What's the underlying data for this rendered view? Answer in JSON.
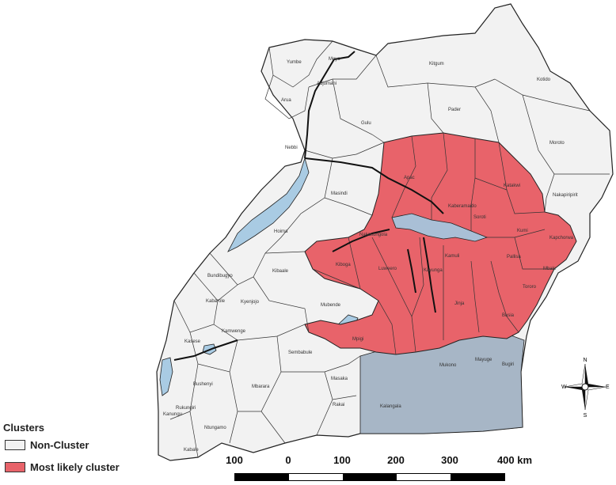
{
  "legend": {
    "title": "Clusters",
    "items": [
      {
        "label": "Non-Cluster",
        "color": "#f2f2f2"
      },
      {
        "label": "Most likely cluster",
        "color": "#e8636a"
      }
    ]
  },
  "scale": {
    "labels": [
      "100",
      "0",
      "100",
      "200",
      "300",
      "400 km"
    ]
  },
  "compass": {
    "n": "N",
    "s": "S",
    "e": "E",
    "w": "W"
  },
  "colors": {
    "lake": "#a9cbe3",
    "lake_victoria": "#a7b6c6",
    "cluster": "#e8636a",
    "noncluster": "#f2f2f2",
    "border": "#222222"
  },
  "districts": [
    {
      "name": "Yumbe"
    },
    {
      "name": "Moyo"
    },
    {
      "name": "Adjumani"
    },
    {
      "name": "Arua"
    },
    {
      "name": "Gulu"
    },
    {
      "name": "Nebbi"
    },
    {
      "name": "Kitgum"
    },
    {
      "name": "Kotido"
    },
    {
      "name": "Pader"
    },
    {
      "name": "Moroto"
    },
    {
      "name": "Nakapiripirit"
    },
    {
      "name": "Apac"
    },
    {
      "name": "Katakwi"
    },
    {
      "name": "Kaberamaido"
    },
    {
      "name": "Soroti"
    },
    {
      "name": "Kumi"
    },
    {
      "name": "Kapchorwa"
    },
    {
      "name": "Masindi"
    },
    {
      "name": "Nakasongola"
    },
    {
      "name": "Hoima"
    },
    {
      "name": "Pallisa"
    },
    {
      "name": "Mbale"
    },
    {
      "name": "Kamuli"
    },
    {
      "name": "Kiboga"
    },
    {
      "name": "Luweero"
    },
    {
      "name": "Kayunga"
    },
    {
      "name": "Tororo"
    },
    {
      "name": "Kibaale"
    },
    {
      "name": "Jinja"
    },
    {
      "name": "Bundibugyo"
    },
    {
      "name": "Kabarole"
    },
    {
      "name": "Kyenjojo"
    },
    {
      "name": "Mubende"
    },
    {
      "name": "Busia"
    },
    {
      "name": "Kamwenge"
    },
    {
      "name": "Mpigi"
    },
    {
      "name": "Kasese"
    },
    {
      "name": "Sembabule"
    },
    {
      "name": "Mukono"
    },
    {
      "name": "Mayuge"
    },
    {
      "name": "Bugiri"
    },
    {
      "name": "Bushenyi"
    },
    {
      "name": "Mbarara"
    },
    {
      "name": "Masaka"
    },
    {
      "name": "Rakai"
    },
    {
      "name": "Kalangala"
    },
    {
      "name": "Rukungiri"
    },
    {
      "name": "Ntungamo"
    },
    {
      "name": "Kanungu"
    },
    {
      "name": "Kabale"
    }
  ]
}
